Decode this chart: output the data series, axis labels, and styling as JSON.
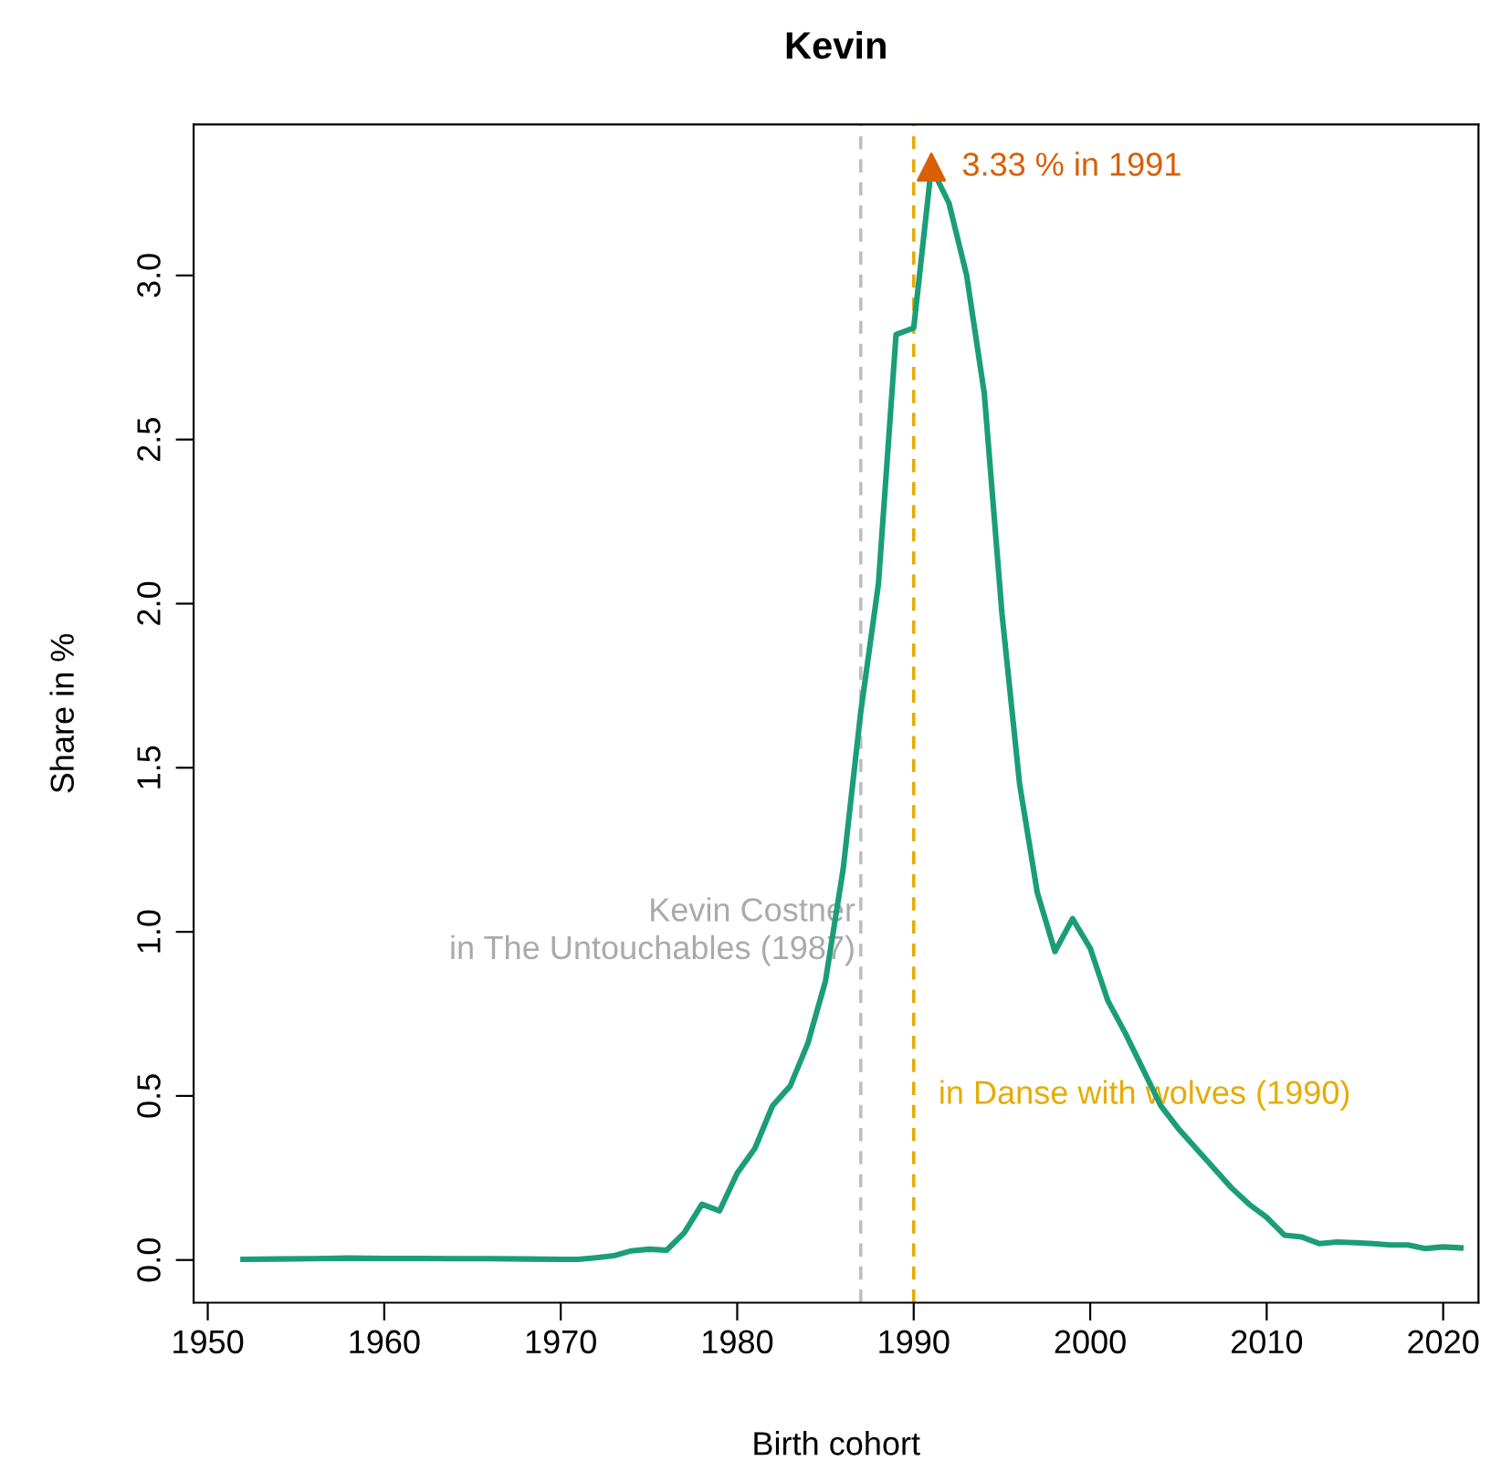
{
  "chart_data": {
    "type": "line",
    "title": "Kevin",
    "xlabel": "Birth cohort",
    "ylabel": "Share in %",
    "xlim": [
      1949.2,
      2022
    ],
    "xticks": [
      1950,
      1960,
      1970,
      1980,
      1990,
      2000,
      2010,
      2020
    ],
    "ylim": [
      -0.13,
      3.46
    ],
    "yticks": [
      {
        "value": 0,
        "label": "0.0"
      },
      {
        "value": 0.5,
        "label": "0.5"
      },
      {
        "value": 1,
        "label": "1.0"
      },
      {
        "value": 1.5,
        "label": "1.5"
      },
      {
        "value": 2,
        "label": "2.0"
      },
      {
        "value": 2.5,
        "label": "2.5"
      },
      {
        "value": 3,
        "label": "3.0"
      }
    ],
    "grid": false,
    "legend": false,
    "series": [
      {
        "color": "#1b9e77",
        "marker": "none",
        "line_style": "solid",
        "x": [
          1952,
          1954,
          1956,
          1958,
          1960,
          1962,
          1964,
          1966,
          1968,
          1970,
          1971,
          1972,
          1973,
          1974,
          1975,
          1976,
          1977,
          1978,
          1979,
          1980,
          1981,
          1982,
          1983,
          1984,
          1985,
          1986,
          1987,
          1988,
          1989,
          1990,
          1991,
          1992,
          1993,
          1994,
          1995,
          1996,
          1997,
          1998,
          1999,
          2000,
          2001,
          2002,
          2003,
          2004,
          2005,
          2006,
          2007,
          2008,
          2009,
          2010,
          2011,
          2012,
          2013,
          2014,
          2015,
          2016,
          2017,
          2018,
          2019,
          2020,
          2021
        ],
        "values": [
          0.002,
          0.003,
          0.004,
          0.006,
          0.005,
          0.005,
          0.004,
          0.004,
          0.003,
          0.002,
          0.002,
          0.007,
          0.013,
          0.028,
          0.033,
          0.03,
          0.083,
          0.17,
          0.15,
          0.265,
          0.34,
          0.47,
          0.53,
          0.66,
          0.85,
          1.19,
          1.67,
          2.06,
          2.82,
          2.84,
          3.33,
          3.22,
          3.0,
          2.64,
          1.97,
          1.45,
          1.12,
          0.94,
          1.04,
          0.95,
          0.79,
          0.69,
          0.58,
          0.47,
          0.4,
          0.34,
          0.28,
          0.22,
          0.17,
          0.13,
          0.076,
          0.07,
          0.05,
          0.055,
          0.053,
          0.05,
          0.046,
          0.046,
          0.035,
          0.04,
          0.037
        ]
      },
      {
        "type": "scatter",
        "color": "#d95f02",
        "marker": "triangle",
        "x": [
          1991
        ],
        "values": [
          3.33
        ]
      }
    ],
    "annotations": [
      {
        "text": "3.33 % in 1991",
        "x": 1991,
        "y": 3.33
      }
    ],
    "ref_lines": [
      {
        "axis": "x",
        "value": 1987,
        "label": "Kevin Costner\nin The Untouchables (1987)",
        "color": "#bebebe",
        "line_style": "dashed"
      },
      {
        "axis": "x",
        "value": 1990,
        "label": "in Danse with wolves (1990)",
        "color": "#e6ab02",
        "line_style": "dashed"
      }
    ]
  }
}
